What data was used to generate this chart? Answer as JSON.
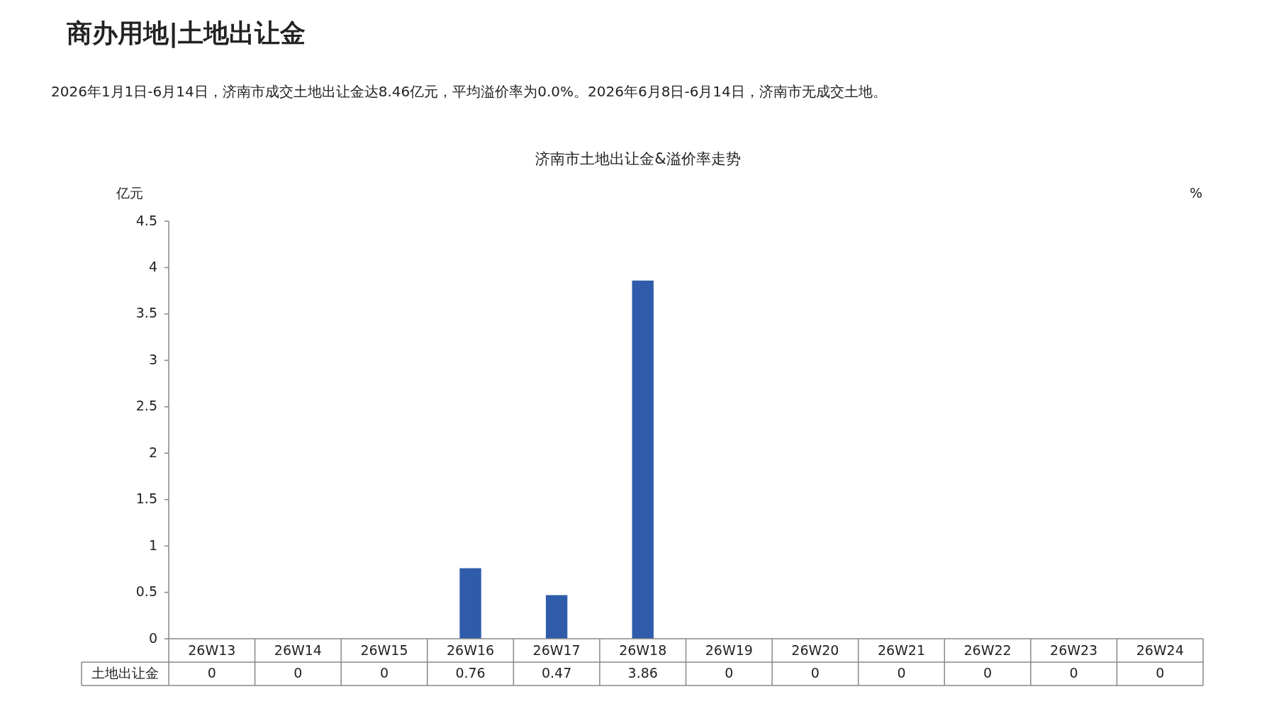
{
  "chart_data": {
    "type": "bar",
    "title": "商办用地|土地出让金",
    "subtitle": "2026年1月1日-6月14日，济南市成交土地出让金达8.46亿元，平均溢价率为0.0%。2026年6月8日-6月14日，济南市无成交土地。",
    "annotations": [
      "济南市土地出让金&溢价率走势"
    ],
    "ylabel": "亿元",
    "y2label": "%",
    "categories": [
      "26W13",
      "26W14",
      "26W15",
      "26W16",
      "26W17",
      "26W18",
      "26W19",
      "26W20",
      "26W21",
      "26W22",
      "26W23",
      "26W24"
    ],
    "series": [
      {
        "name": "土地出让金",
        "color": "#2f5caa",
        "values": [
          0,
          0,
          0,
          0.76,
          0.47,
          3.86,
          0,
          0,
          0,
          0,
          0,
          0
        ]
      }
    ],
    "ylim": [
      0,
      4.5
    ],
    "yticks": [
      0,
      0.5,
      1,
      1.5,
      2,
      2.5,
      3,
      3.5,
      4,
      4.5
    ],
    "data_labels": true,
    "legend": false,
    "grid": false
  }
}
